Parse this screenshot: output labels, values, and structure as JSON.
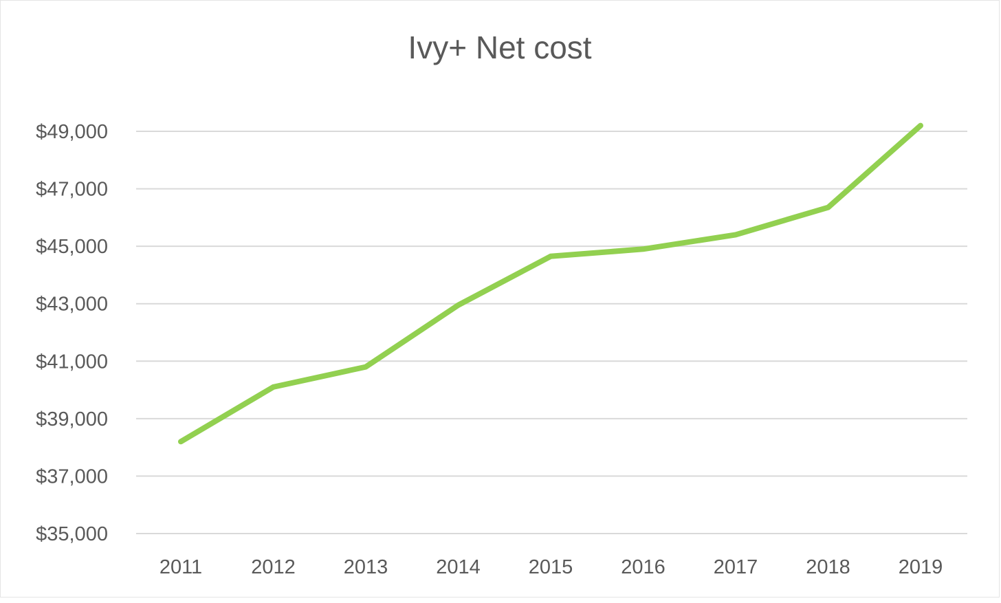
{
  "chart_data": {
    "type": "line",
    "title": "Ivy+ Net cost",
    "xlabel": "",
    "ylabel": "",
    "categories": [
      "2011",
      "2012",
      "2013",
      "2014",
      "2015",
      "2016",
      "2017",
      "2018",
      "2019"
    ],
    "series": [
      {
        "values": [
          38200,
          40100,
          40800,
          42950,
          44650,
          44900,
          45400,
          46350,
          49200
        ],
        "color": "#92d050"
      }
    ],
    "ylim": [
      35000,
      49000
    ],
    "yticks": [
      35000,
      37000,
      39000,
      41000,
      43000,
      45000,
      47000,
      49000
    ],
    "ytick_labels": [
      "$35,000",
      "$37,000",
      "$39,000",
      "$41,000",
      "$43,000",
      "$45,000",
      "$47,000",
      "$49,000"
    ],
    "grid": true,
    "legend": "none"
  }
}
